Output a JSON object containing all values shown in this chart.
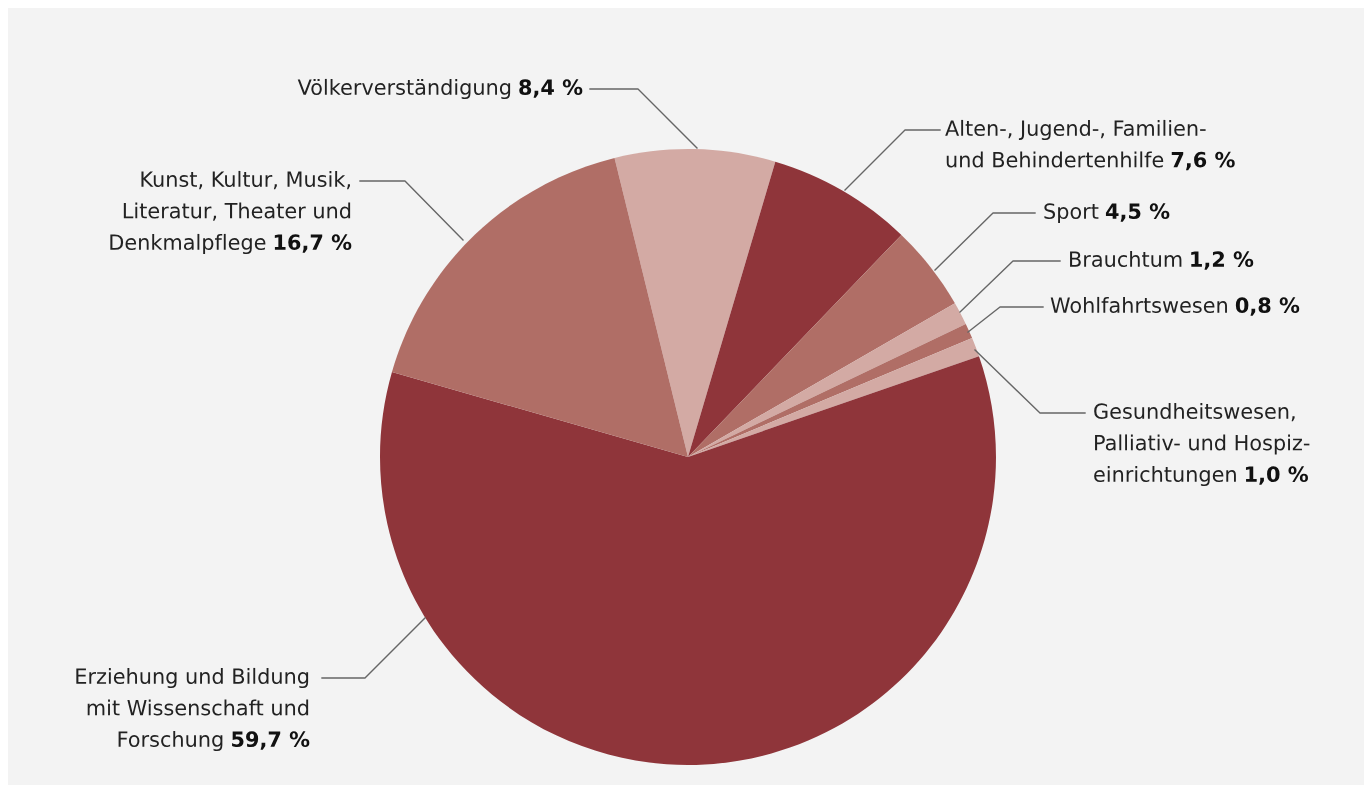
{
  "chart_data": {
    "type": "pie",
    "categories": [
      "Völkerverständigung",
      "Alten-, Jugend-, Familien-\nund Behindertenhilfe",
      "Sport",
      "Brauchtum",
      "Wohlfahrtswesen",
      "Gesundheitswesen,\nPalliativ- und Hospiz-\neinrichtungen",
      "Erziehung und Bildung\nmit Wissenschaft und\nForschung",
      "Kunst, Kultur, Musik,\nLiteratur, Theater und\nDenkmalpflege"
    ],
    "values": [
      8.4,
      7.6,
      4.5,
      1.2,
      0.8,
      1.0,
      59.7,
      16.7
    ],
    "value_labels": [
      "8,4 %",
      "7,6 %",
      "4,5 %",
      "1,2 %",
      "0,8 %",
      "1,0 %",
      "59,7 %",
      "16,7 %"
    ],
    "colors": [
      "#d3aaa4",
      "#8f353a",
      "#b06e66",
      "#d3aaa4",
      "#b06e66",
      "#d3aaa4",
      "#8f353a",
      "#b06e66"
    ]
  }
}
